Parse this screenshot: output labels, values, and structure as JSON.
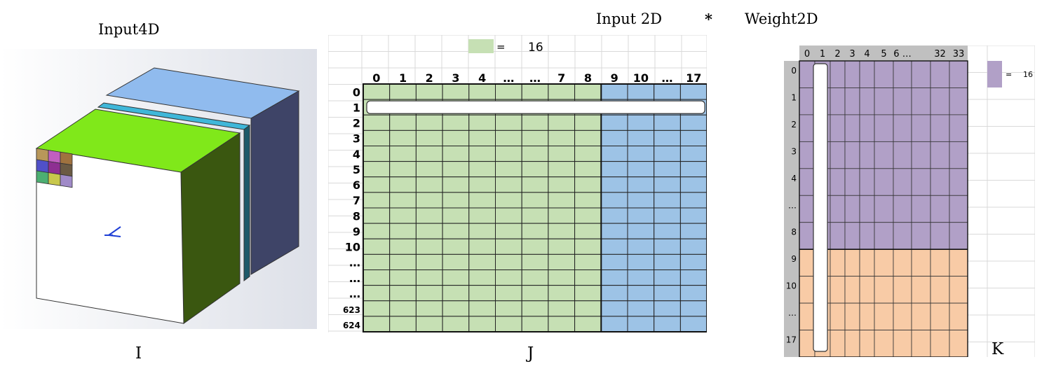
{
  "header": {
    "input4d_title": "Input4D",
    "input2d_title": "Input 2D",
    "operator": "*",
    "weight2d_title": "Weight2D"
  },
  "captions": {
    "panel_i": "I",
    "panel_j": "J",
    "panel_k": "K"
  },
  "input2d": {
    "legend_equals": "=",
    "legend_value": "16",
    "col_labels": [
      "0",
      "1",
      "2",
      "3",
      "4",
      "…",
      "…",
      "7",
      "8",
      "9",
      "10",
      "…",
      "17"
    ],
    "row_labels": [
      "0",
      "1",
      "2",
      "3",
      "4",
      "5",
      "6",
      "7",
      "8",
      "9",
      "10",
      "…",
      "…",
      "…",
      "623",
      "624"
    ],
    "colors": {
      "green": "#c6e0b4",
      "blue": "#9dc3e6",
      "grid": "#d9d9d9"
    }
  },
  "weight2d": {
    "legend_equals": "=",
    "legend_value": "16",
    "col_labels": [
      "0",
      "1",
      "2",
      "3",
      "4",
      "5",
      "6 …",
      "32",
      "33"
    ],
    "row_labels": [
      "0",
      "1",
      "2",
      "3",
      "4",
      "…",
      "8",
      "9",
      "10",
      "…",
      "17"
    ],
    "colors": {
      "purple": "#b1a0c7",
      "orange": "#f8cba6",
      "header": "#c0c0c0"
    }
  },
  "cube": {
    "colors": {
      "top_green": "#80e81a",
      "side_green": "#3a5710",
      "top_blue": "#90bbee",
      "side_navy": "#3e4467",
      "slab_cyan": "#3fb7d9"
    },
    "swatches": [
      "#b8975a",
      "#c05fc0",
      "#a0723f",
      "#5050c8",
      "#8e2f92",
      "#6b5a44",
      "#4caf72",
      "#c8c84c",
      "#a08ac8"
    ]
  }
}
